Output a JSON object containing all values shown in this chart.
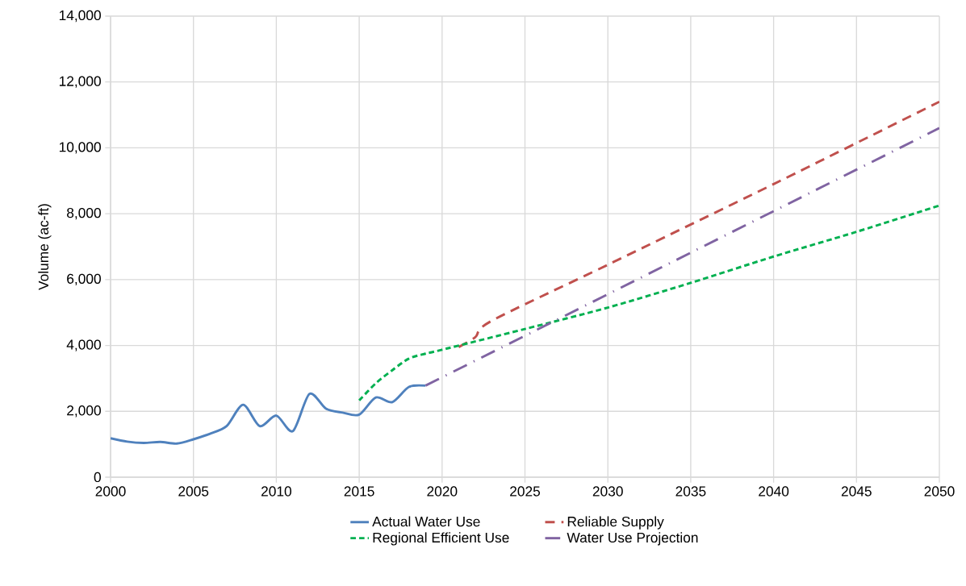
{
  "chart_data": {
    "type": "line",
    "ylabel": "Volume (ac-ft)",
    "xlim": [
      2000,
      2050
    ],
    "xticks": [
      2000,
      2005,
      2010,
      2015,
      2020,
      2025,
      2030,
      2035,
      2040,
      2045,
      2050
    ],
    "ylim": [
      0,
      14000
    ],
    "yticks": [
      0,
      {
        "value": 2000,
        "label": "2,000"
      },
      {
        "value": 4000,
        "label": "4,000"
      },
      {
        "value": 6000,
        "label": "6,000"
      },
      {
        "value": 8000,
        "label": "8,000"
      },
      {
        "value": 10000,
        "label": "10,000"
      },
      {
        "value": 12000,
        "label": "12,000"
      },
      {
        "value": 14000,
        "label": "14,000"
      }
    ],
    "grid": true,
    "legend": "bottom",
    "marker": "none",
    "series": [
      {
        "name": "Actual Water Use",
        "color": "#4f81bd",
        "line_style": "solid",
        "x": [
          2000,
          2001,
          2002,
          2003,
          2004,
          2005,
          2006,
          2007,
          2008,
          2009,
          2010,
          2011,
          2012,
          2013,
          2014,
          2015,
          2016,
          2017,
          2018,
          2019
        ],
        "values": [
          1180,
          1080,
          1040,
          1070,
          1020,
          1150,
          1320,
          1550,
          2200,
          1550,
          1870,
          1400,
          2530,
          2080,
          1960,
          1900,
          2420,
          2280,
          2740,
          2780
        ]
      },
      {
        "name": "Reliable Supply",
        "color": "#c0504d",
        "line_style": "dashed",
        "x": [
          2021,
          2022,
          2023,
          2030,
          2040,
          2050
        ],
        "values": [
          3950,
          4250,
          4750,
          6450,
          8900,
          11400
        ]
      },
      {
        "name": "Regional Efficient Use",
        "color": "#00b050",
        "line_style": "dotted",
        "x": [
          2015,
          2016,
          2017,
          2018,
          2019,
          2020,
          2025,
          2030,
          2035,
          2040,
          2045,
          2050
        ],
        "values": [
          2330,
          2850,
          3250,
          3600,
          3750,
          3870,
          4500,
          5150,
          5900,
          6700,
          7450,
          8250
        ]
      },
      {
        "name": "Water Use Projection",
        "color": "#8064a2",
        "line_style": "dashdot",
        "x": [
          2019,
          2050
        ],
        "values": [
          2780,
          10600
        ]
      }
    ]
  }
}
